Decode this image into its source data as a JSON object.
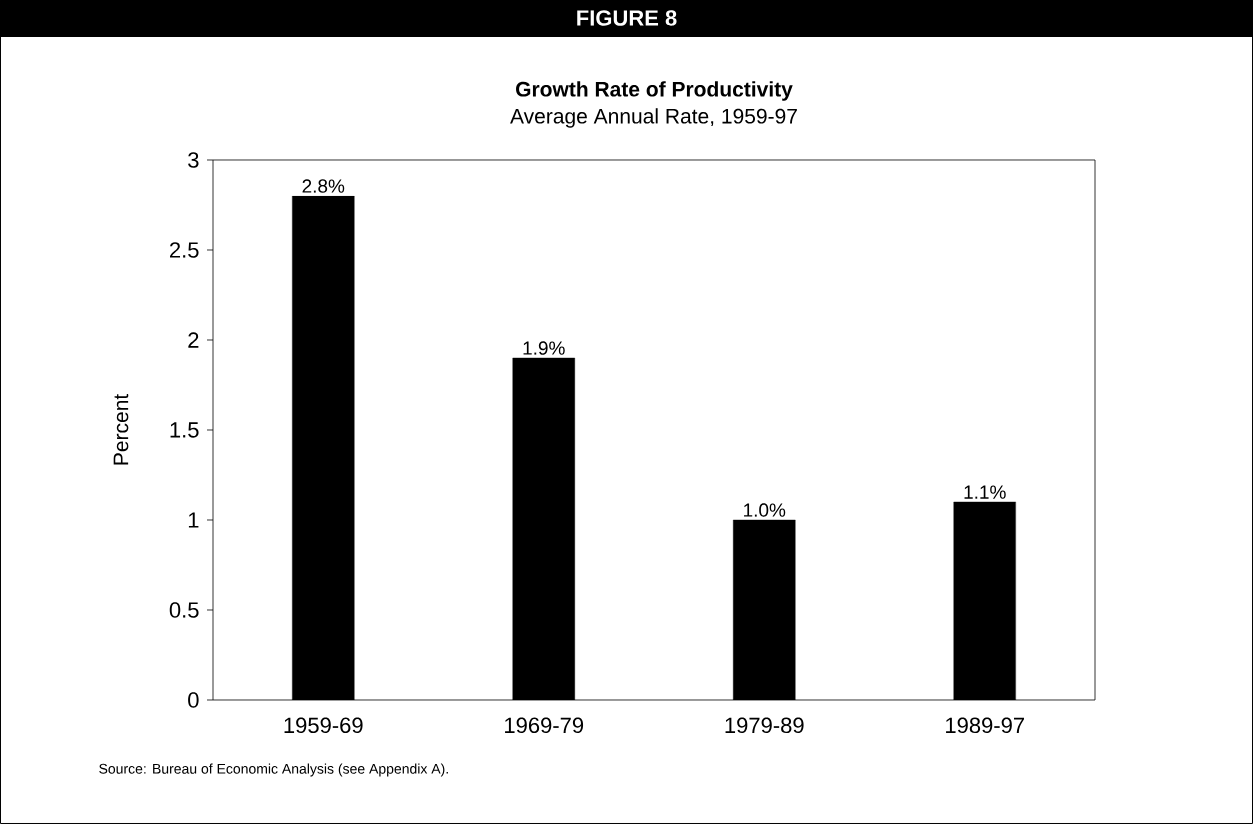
{
  "chart_data": {
    "type": "bar",
    "title": "Growth Rate of Productivity",
    "subtitle": "Average Annual Rate, 1959-97",
    "ylabel": "Percent",
    "categories": [
      "1959-69",
      "1969-79",
      "1979-89",
      "1989-97"
    ],
    "values": [
      2.8,
      1.9,
      1.0,
      1.1
    ],
    "value_labels": [
      "2.8%",
      "1.9%",
      "1.0%",
      "1.1%"
    ],
    "color": "#000000",
    "ylim": [
      0,
      3
    ],
    "yticks": [
      0,
      0.5,
      1,
      1.5,
      2,
      2.5,
      3
    ],
    "grid": false,
    "annotations": [
      "FIGURE 8",
      "Source: Bureau of Economic Analysis (see Appendix A)."
    ]
  }
}
